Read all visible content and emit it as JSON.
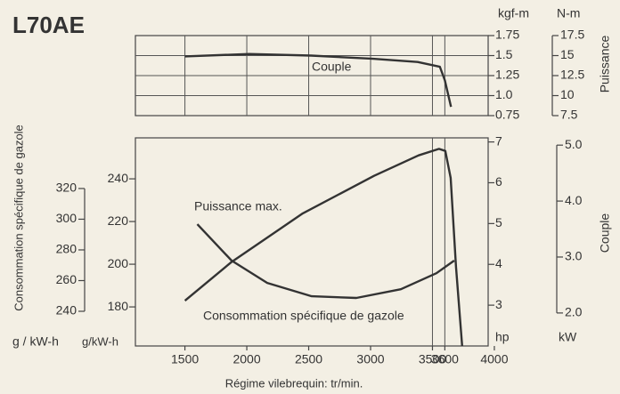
{
  "chart_data": [
    {
      "type": "line",
      "title": "L70AE",
      "xlim": [
        1100,
        3950
      ],
      "ylim": [
        0.75,
        1.75
      ],
      "yticks": [
        0.75,
        {
          "value": 1.0,
          "label": "1.0"
        },
        1.25,
        1.5,
        1.75
      ],
      "y_unit": "kgf-m",
      "y2lim": [
        7.5,
        17.5
      ],
      "y2ticks": [
        7.5,
        10,
        12.5,
        15,
        17.5
      ],
      "y2_unit": "N-m",
      "y2_label": "Puissance",
      "grid": true,
      "series": [
        {
          "name": "Couple",
          "color": "#333333",
          "x": [
            1500,
            2020,
            2520,
            3020,
            3380,
            3560,
            3600,
            3650
          ],
          "values": [
            1.49,
            1.52,
            1.5,
            1.46,
            1.42,
            1.36,
            1.19,
            0.86
          ]
        }
      ]
    },
    {
      "type": "line",
      "xlim": [
        1100,
        3950
      ],
      "xticks": [
        1500,
        2000,
        2500,
        3000,
        3500,
        3600,
        4000
      ],
      "xlabel": "Régime vilebrequin: tr/min.",
      "ylabel": "Consommation spécifique de gazole",
      "ylim": [
        2,
        7.1
      ],
      "yticks": [
        3,
        4,
        5,
        6,
        7
      ],
      "y_unit": "hp",
      "y2lim": [
        1.41,
        5.13
      ],
      "y2ticks": [
        {
          "value": 5,
          "label": "5.0"
        },
        {
          "value": 4,
          "label": "4.0"
        },
        {
          "value": 3,
          "label": "3.0"
        },
        {
          "value": 2,
          "label": "2.0"
        }
      ],
      "y2_unit": "kW",
      "y2_label": "Couple",
      "y3lim": [
        161.7,
        259.2
      ],
      "y3ticks": [
        180,
        200,
        220,
        240
      ],
      "y3_unit": "g/kW-h",
      "y4lim": [
        217.4,
        353
      ],
      "y4ticks": [
        240,
        260,
        280,
        300,
        320
      ],
      "y4_unit": "g / kW-h",
      "annotation": {
        "text": "Puissance max.",
        "x": [
          3500,
          3600
        ]
      },
      "series": [
        {
          "color": "#333333",
          "x": [
            1500,
            1874,
            2452,
            3028,
            3388,
            3553,
            3604,
            3647,
            3690,
            3740
          ],
          "values": [
            3.11,
            4.05,
            5.25,
            6.17,
            6.67,
            6.83,
            6.78,
            6.12,
            3.94,
            2.0
          ]
        },
        {
          "name": "Consommation spécifique de gazole",
          "color": "#333333",
          "axis": "y3",
          "x": [
            1600,
            1877,
            2165,
            2524,
            2885,
            3245,
            3532,
            3676
          ],
          "values": [
            218.75,
            201.7,
            191.25,
            185,
            184.2,
            188.3,
            195.8,
            201.7
          ]
        }
      ]
    }
  ]
}
